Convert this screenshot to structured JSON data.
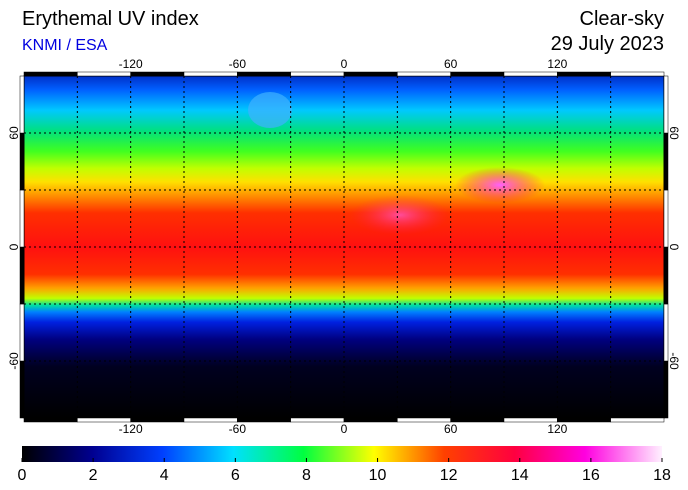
{
  "header": {
    "title": "Erythemal UV index",
    "source": "KNMI / ESA",
    "condition": "Clear-sky",
    "date": "29 July 2023"
  },
  "map": {
    "xlim": [
      -180,
      180
    ],
    "ylim": [
      -90,
      90
    ],
    "xticks": [
      -120,
      -60,
      0,
      60,
      120
    ],
    "yticks": [
      -60,
      0,
      60
    ]
  },
  "colorbar": {
    "lim": [
      0,
      18
    ],
    "ticks": [
      0,
      2,
      4,
      6,
      8,
      10,
      12,
      14,
      16,
      18
    ]
  }
}
